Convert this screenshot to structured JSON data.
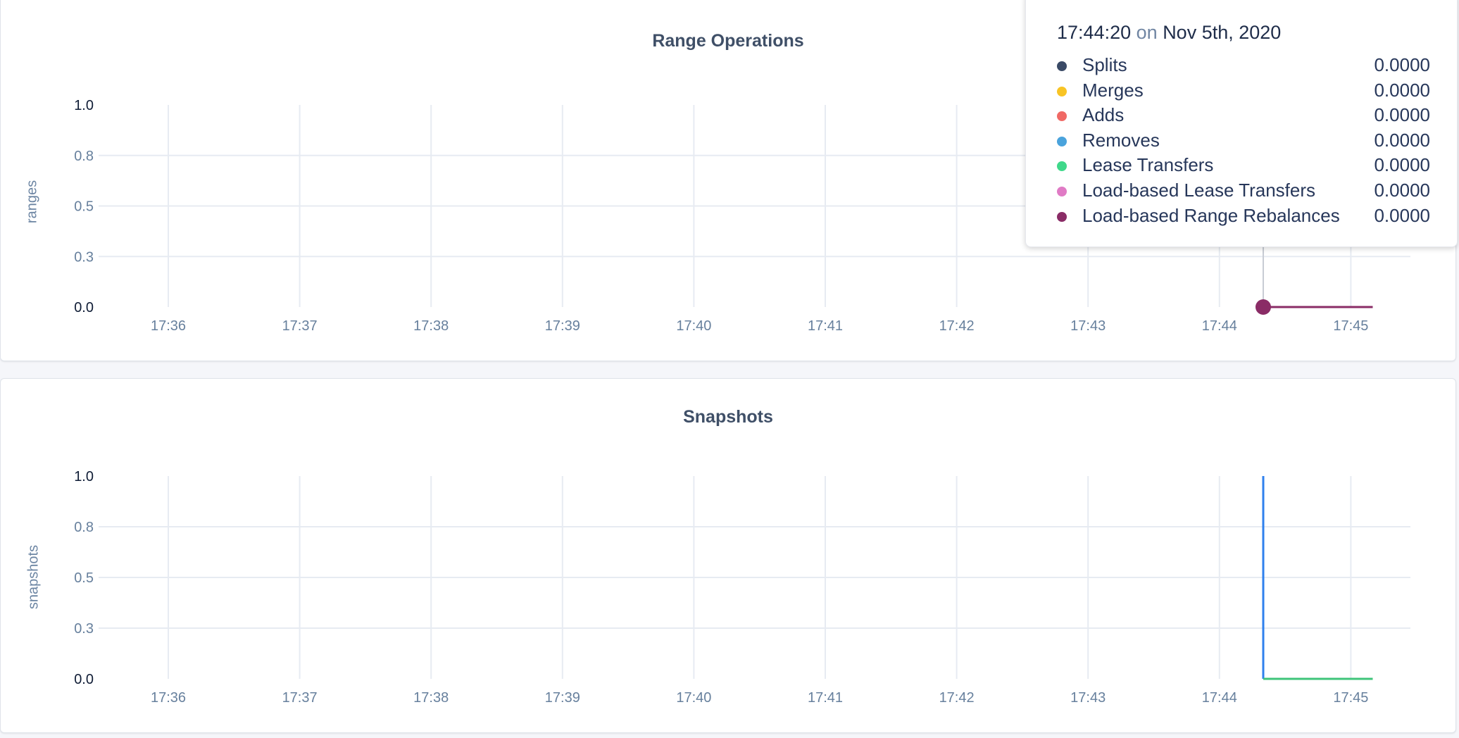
{
  "chart_data": [
    {
      "type": "line",
      "title": "Range Operations",
      "ylabel": "ranges",
      "xlabel": "",
      "ylim": [
        0,
        1
      ],
      "yticks": [
        0,
        0.25,
        0.5,
        0.75,
        1
      ],
      "ytick_labels": [
        "0.0",
        "0.3",
        "0.5",
        "0.8",
        "1.0"
      ],
      "xticks": [
        "17:36",
        "17:37",
        "17:38",
        "17:39",
        "17:40",
        "17:41",
        "17:42",
        "17:43",
        "17:44",
        "17:45"
      ],
      "grid": true,
      "series": [
        {
          "name": "Splits",
          "color": "#3a4a66",
          "x": [
            "17:44:20",
            "17:45:10"
          ],
          "y": [
            0,
            0
          ]
        },
        {
          "name": "Merges",
          "color": "#f8c425",
          "x": [
            "17:44:20",
            "17:45:10"
          ],
          "y": [
            0,
            0
          ]
        },
        {
          "name": "Adds",
          "color": "#f06965",
          "x": [
            "17:44:20",
            "17:45:10"
          ],
          "y": [
            0,
            0
          ]
        },
        {
          "name": "Removes",
          "color": "#4aa3dc",
          "x": [
            "17:44:20",
            "17:45:10"
          ],
          "y": [
            0,
            0
          ]
        },
        {
          "name": "Lease Transfers",
          "color": "#3fd88a",
          "x": [
            "17:44:20",
            "17:45:10"
          ],
          "y": [
            0,
            0
          ]
        },
        {
          "name": "Load-based Lease Transfers",
          "color": "#e07bc5",
          "x": [
            "17:44:20",
            "17:45:10"
          ],
          "y": [
            0,
            0
          ]
        },
        {
          "name": "Load-based Range Rebalances",
          "color": "#8a2c66",
          "x": [
            "17:44:20",
            "17:45:10"
          ],
          "y": [
            0,
            0
          ]
        }
      ],
      "tooltip": {
        "time": "17:44:20",
        "on": "on",
        "date": "Nov 5th, 2020",
        "rows": [
          {
            "label": "Splits",
            "value": "0.0000",
            "color": "#3a4a66"
          },
          {
            "label": "Merges",
            "value": "0.0000",
            "color": "#f8c425"
          },
          {
            "label": "Adds",
            "value": "0.0000",
            "color": "#f06965"
          },
          {
            "label": "Removes",
            "value": "0.0000",
            "color": "#4aa3dc"
          },
          {
            "label": "Lease Transfers",
            "value": "0.0000",
            "color": "#3fd88a"
          },
          {
            "label": "Load-based Lease Transfers",
            "value": "0.0000",
            "color": "#e07bc5"
          },
          {
            "label": "Load-based Range Rebalances",
            "value": "0.0000",
            "color": "#8a2c66"
          }
        ]
      }
    },
    {
      "type": "line",
      "title": "Snapshots",
      "ylabel": "snapshots",
      "xlabel": "",
      "ylim": [
        0,
        1
      ],
      "yticks": [
        0,
        0.25,
        0.5,
        0.75,
        1
      ],
      "ytick_labels": [
        "0.0",
        "0.3",
        "0.5",
        "0.8",
        "1.0"
      ],
      "xticks": [
        "17:36",
        "17:37",
        "17:38",
        "17:39",
        "17:40",
        "17:41",
        "17:42",
        "17:43",
        "17:44",
        "17:45"
      ],
      "grid": true,
      "series": [
        {
          "color": "#2f80ed",
          "x": [
            "17:44:20",
            "17:44:20"
          ],
          "y": [
            1,
            0
          ]
        },
        {
          "color": "#3fc47a",
          "x": [
            "17:44:20",
            "17:45:10"
          ],
          "y": [
            0,
            0
          ]
        }
      ]
    }
  ]
}
